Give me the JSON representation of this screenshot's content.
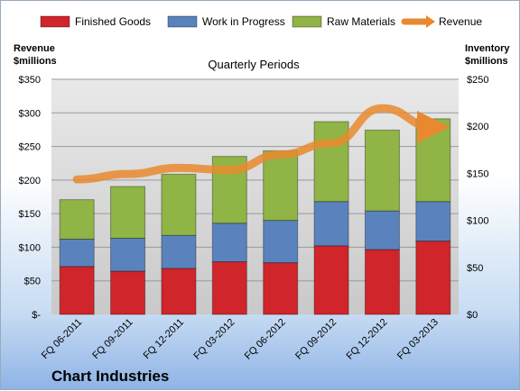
{
  "chart_data": {
    "type": "bar",
    "stacked": true,
    "title": "Quarterly Periods",
    "company": "Chart Industries",
    "categories": [
      "FQ 06-2011",
      "FQ 09-2011",
      "FQ 12-2011",
      "FQ 03-2012",
      "FQ 06-2012",
      "FQ 09-2012",
      "FQ 12-2012",
      "FQ 03-2013"
    ],
    "series": [
      {
        "name": "Finished Goods",
        "axis": "right",
        "color": "#d0252b",
        "values": [
          51,
          46,
          49,
          56,
          55,
          73,
          69,
          78
        ]
      },
      {
        "name": "Work in Progress",
        "axis": "right",
        "color": "#5a83bd",
        "values": [
          29,
          35,
          35,
          41,
          45,
          47,
          41,
          42
        ]
      },
      {
        "name": "Raw Materials",
        "axis": "right",
        "color": "#90b445",
        "values": [
          42,
          55,
          65,
          71,
          74,
          85,
          86,
          88
        ]
      },
      {
        "name": "Revenue",
        "type": "line",
        "axis": "left",
        "color": "#e9892f",
        "values": [
          201,
          209,
          218,
          215,
          238,
          255,
          307,
          279
        ]
      }
    ],
    "left_axis": {
      "title": [
        "Revenue",
        "$millions"
      ],
      "range": [
        0,
        350
      ],
      "ticks": [
        "$-",
        "$50",
        "$100",
        "$150",
        "$200",
        "$250",
        "$300",
        "$350"
      ]
    },
    "right_axis": {
      "title": [
        "Inventory",
        "$millions"
      ],
      "range": [
        0,
        250
      ],
      "ticks": [
        "$0",
        "$50",
        "$100",
        "$150",
        "$200",
        "$250"
      ]
    },
    "grid": true,
    "legend_position": "top"
  }
}
